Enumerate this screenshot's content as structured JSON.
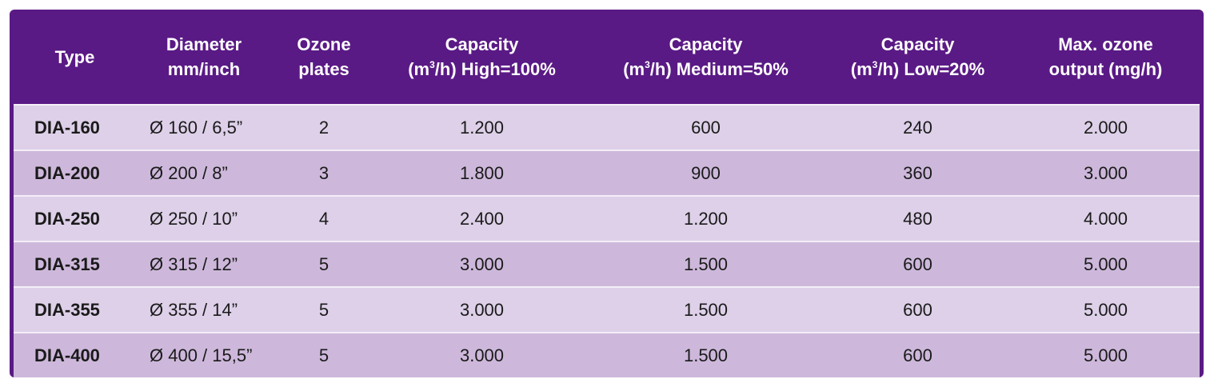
{
  "headers": [
    {
      "line1": "Type",
      "line2": ""
    },
    {
      "line1": "Diameter",
      "line2": "mm/inch"
    },
    {
      "line1": "Ozone",
      "line2": "plates"
    },
    {
      "line1": "Capacity",
      "line2_pre": "(m",
      "sup": "3",
      "line2_post": "/h) High=100%"
    },
    {
      "line1": "Capacity",
      "line2_pre": "(m",
      "sup": "3",
      "line2_post": "/h) Medium=50%"
    },
    {
      "line1": "Capacity",
      "line2_pre": "(m",
      "sup": "3",
      "line2_post": "/h) Low=20%"
    },
    {
      "line1": "Max. ozone",
      "line2": "output (mg/h)"
    }
  ],
  "rows": [
    [
      "DIA-160",
      "Ø 160 / 6,5”",
      "2",
      "1.200",
      "600",
      "240",
      "2.000"
    ],
    [
      "DIA-200",
      "Ø 200 / 8”",
      "3",
      "1.800",
      "900",
      "360",
      "3.000"
    ],
    [
      "DIA-250",
      "Ø 250 / 10”",
      "4",
      "2.400",
      "1.200",
      "480",
      "4.000"
    ],
    [
      "DIA-315",
      "Ø 315 / 12”",
      "5",
      "3.000",
      "1.500",
      "600",
      "5.000"
    ],
    [
      "DIA-355",
      "Ø 355 / 14”",
      "5",
      "3.000",
      "1.500",
      "600",
      "5.000"
    ],
    [
      "DIA-400",
      "Ø 400 / 15,5”",
      "5",
      "3.000",
      "1.500",
      "600",
      "5.000"
    ]
  ],
  "colors": {
    "header": "#5a1a85",
    "row_light": "#ddd0e8",
    "row_dark": "#cdb8db"
  }
}
